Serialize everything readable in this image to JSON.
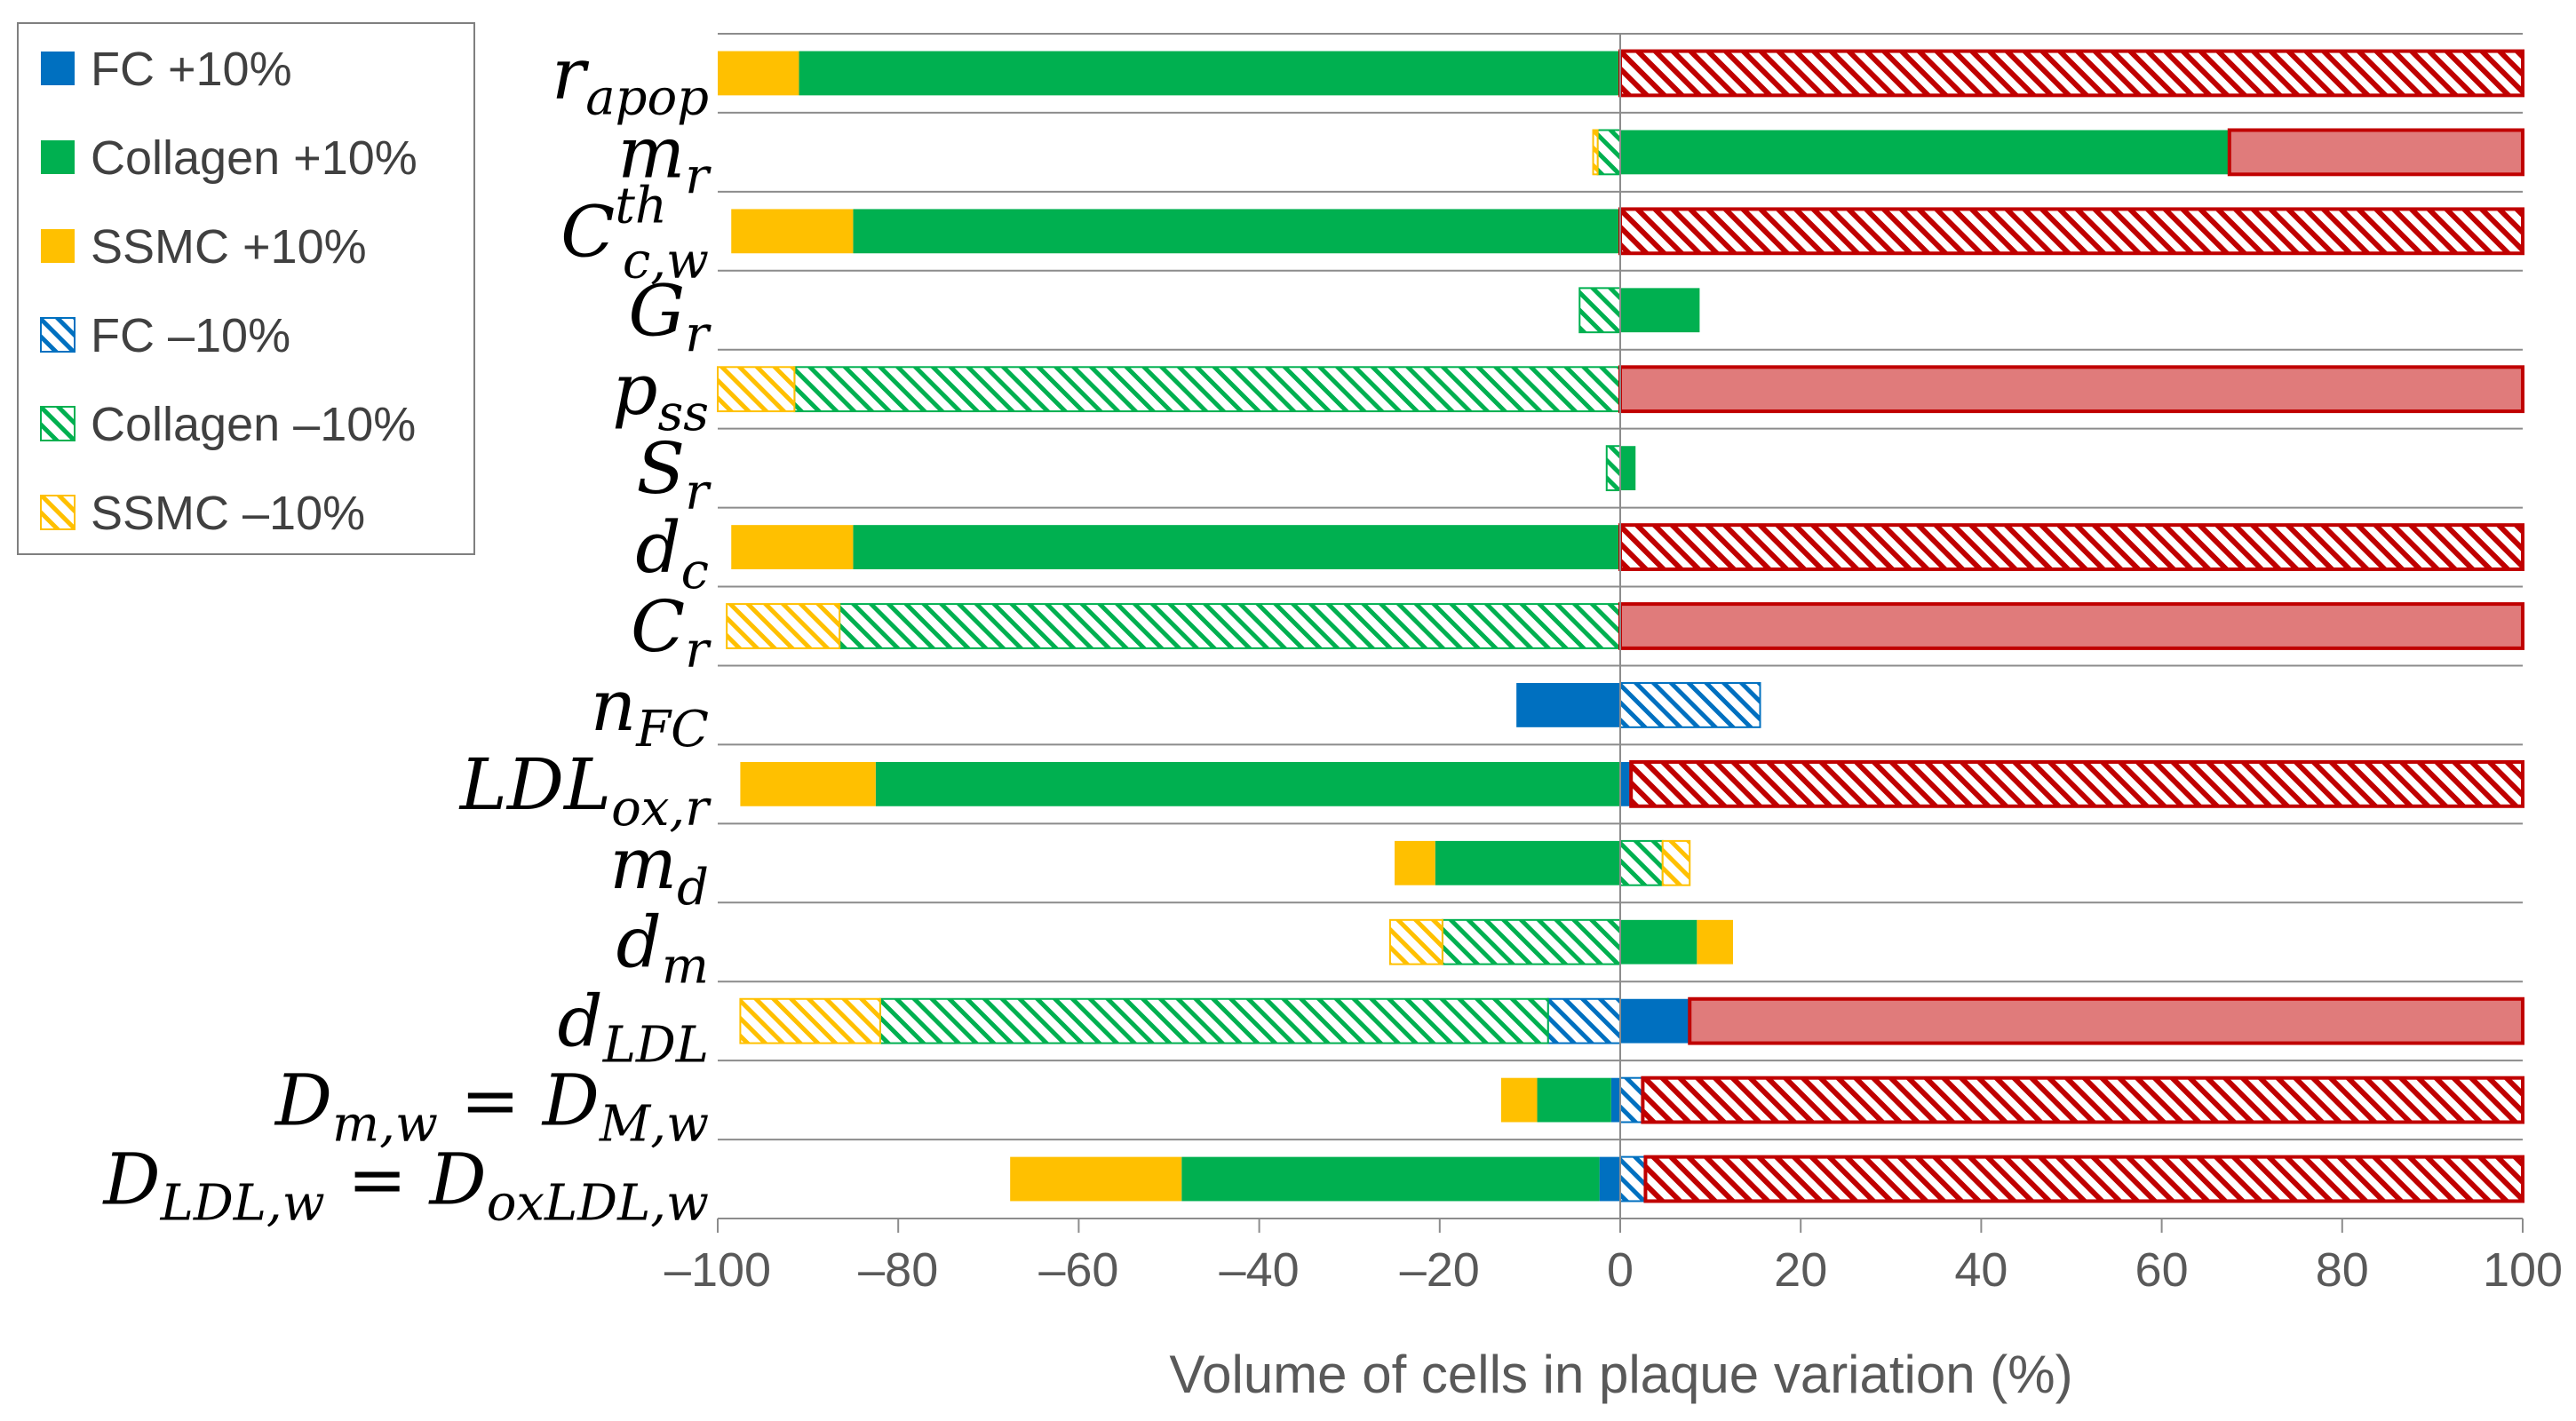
{
  "chart_data": {
    "type": "bar",
    "orientation": "horizontal",
    "stacking": "diverging",
    "xlabel": "Volume of cells in plaque variation (%)",
    "ylabel": "",
    "xlim": [
      -100,
      100
    ],
    "xticks": [
      "-100",
      "-80",
      "-60",
      "-40",
      "-20",
      "0",
      "20",
      "40",
      "60",
      "80",
      "100"
    ],
    "grid": "horizontal category separators",
    "legend_position": "top-left",
    "colors": {
      "fc": "#0070C0",
      "collagen": "#00B050",
      "ssmc": "#FFC000",
      "red_fill": "#E07B7B",
      "red_stroke": "#C00000",
      "grid": "#8C8C8C",
      "axis": "#8C8C8C"
    },
    "legend": [
      {
        "label": "FC  +10%",
        "key": "fc",
        "hatched": false
      },
      {
        "label": "Collagen  +10%",
        "key": "collagen",
        "hatched": false
      },
      {
        "label": "SSMC  +10%",
        "key": "ssmc",
        "hatched": false
      },
      {
        "label": "FC  –10%",
        "key": "fc",
        "hatched": true
      },
      {
        "label": "Collagen  –10%",
        "key": "collagen",
        "hatched": true
      },
      {
        "label": "SSMC  –10%",
        "key": "ssmc",
        "hatched": true
      }
    ],
    "categories": [
      {
        "name": "r_apop",
        "main": "r",
        "sub": "apop",
        "sup": ""
      },
      {
        "name": "m_r",
        "main": "m",
        "sub": "r",
        "sup": ""
      },
      {
        "name": "C_c,w^th",
        "main": "C",
        "sub": "c,w",
        "sup": "th"
      },
      {
        "name": "G_r",
        "main": "G",
        "sub": "r",
        "sup": ""
      },
      {
        "name": "p_ss",
        "main": "p",
        "sub": "ss",
        "sup": ""
      },
      {
        "name": "S_r",
        "main": "S",
        "sub": "r",
        "sup": ""
      },
      {
        "name": "d_c",
        "main": "d",
        "sub": "c",
        "sup": ""
      },
      {
        "name": "C_r",
        "main": "C",
        "sub": "r",
        "sup": ""
      },
      {
        "name": "n_FC",
        "main": "n",
        "sub": "FC",
        "sup": ""
      },
      {
        "name": "LDL_ox,r",
        "main": "LDL",
        "sub": "ox,r",
        "sup": ""
      },
      {
        "name": "m_d",
        "main": "m",
        "sub": "d",
        "sup": ""
      },
      {
        "name": "d_m",
        "main": "d",
        "sub": "m",
        "sup": ""
      },
      {
        "name": "d_LDL",
        "main": "d",
        "sub": "LDL",
        "sup": ""
      },
      {
        "name": "D_m,w = D_M,w",
        "main": "D",
        "sub": "m,w",
        "sup": "",
        "main2": " = D",
        "sub2": "M,w"
      },
      {
        "name": "D_LDL,w = D_oxLDL,w",
        "main": "D",
        "sub": "LDL,w",
        "sup": "",
        "main2": " = D",
        "sub2": "oxLDL,w"
      }
    ],
    "series": [
      {
        "category": "r_apop",
        "negative": [
          {
            "key": "collagen",
            "hatched": false,
            "value": 91
          },
          {
            "key": "ssmc",
            "hatched": false,
            "value": 9
          }
        ],
        "positive": [
          {
            "key": "red",
            "hatched": true,
            "value": 100
          }
        ]
      },
      {
        "category": "m_r",
        "negative": [
          {
            "key": "collagen",
            "hatched": true,
            "value": 2.5
          },
          {
            "key": "ssmc",
            "hatched": true,
            "value": 0.5
          }
        ],
        "positive": [
          {
            "key": "collagen",
            "hatched": false,
            "value": 67.5
          },
          {
            "key": "red",
            "hatched": false,
            "value": 32.5
          }
        ]
      },
      {
        "category": "C_c,w^th",
        "negative": [
          {
            "key": "collagen",
            "hatched": false,
            "value": 85
          },
          {
            "key": "ssmc",
            "hatched": false,
            "value": 13.5
          }
        ],
        "positive": [
          {
            "key": "red",
            "hatched": true,
            "value": 100
          }
        ]
      },
      {
        "category": "G_r",
        "negative": [
          {
            "key": "collagen",
            "hatched": true,
            "value": 4.5
          }
        ],
        "positive": [
          {
            "key": "collagen",
            "hatched": false,
            "value": 8.8
          }
        ]
      },
      {
        "category": "p_ss",
        "negative": [
          {
            "key": "collagen",
            "hatched": true,
            "value": 91.5
          },
          {
            "key": "ssmc",
            "hatched": true,
            "value": 8.5
          }
        ],
        "positive": [
          {
            "key": "red",
            "hatched": false,
            "value": 100
          }
        ]
      },
      {
        "category": "S_r",
        "negative": [
          {
            "key": "collagen",
            "hatched": true,
            "value": 1.5
          }
        ],
        "positive": [
          {
            "key": "collagen",
            "hatched": false,
            "value": 1.7
          }
        ]
      },
      {
        "category": "d_c",
        "negative": [
          {
            "key": "collagen",
            "hatched": false,
            "value": 85
          },
          {
            "key": "ssmc",
            "hatched": false,
            "value": 13.5
          }
        ],
        "positive": [
          {
            "key": "red",
            "hatched": true,
            "value": 100
          }
        ]
      },
      {
        "category": "C_r",
        "negative": [
          {
            "key": "collagen",
            "hatched": true,
            "value": 86.5
          },
          {
            "key": "ssmc",
            "hatched": true,
            "value": 12.5
          }
        ],
        "positive": [
          {
            "key": "red",
            "hatched": false,
            "value": 100
          }
        ]
      },
      {
        "category": "n_FC",
        "negative": [
          {
            "key": "fc",
            "hatched": false,
            "value": 11.5
          }
        ],
        "positive": [
          {
            "key": "fc",
            "hatched": true,
            "value": 15.5
          }
        ]
      },
      {
        "category": "LDL_ox,r",
        "negative": [
          {
            "key": "collagen",
            "hatched": false,
            "value": 82.5
          },
          {
            "key": "ssmc",
            "hatched": false,
            "value": 15
          }
        ],
        "positive": [
          {
            "key": "fc",
            "hatched": false,
            "value": 1.2
          },
          {
            "key": "red",
            "hatched": true,
            "value": 98.8
          }
        ]
      },
      {
        "category": "m_d",
        "negative": [
          {
            "key": "collagen",
            "hatched": false,
            "value": 20.5
          },
          {
            "key": "ssmc",
            "hatched": false,
            "value": 4.5
          }
        ],
        "positive": [
          {
            "key": "collagen",
            "hatched": true,
            "value": 4.7
          },
          {
            "key": "ssmc",
            "hatched": true,
            "value": 3
          }
        ]
      },
      {
        "category": "d_m",
        "negative": [
          {
            "key": "collagen",
            "hatched": true,
            "value": 19.7
          },
          {
            "key": "ssmc",
            "hatched": true,
            "value": 5.8
          }
        ],
        "positive": [
          {
            "key": "collagen",
            "hatched": false,
            "value": 8.5
          },
          {
            "key": "ssmc",
            "hatched": false,
            "value": 4
          }
        ]
      },
      {
        "category": "d_LDL",
        "negative": [
          {
            "key": "fc",
            "hatched": true,
            "value": 8
          },
          {
            "key": "collagen",
            "hatched": true,
            "value": 74
          },
          {
            "key": "ssmc",
            "hatched": true,
            "value": 15.5
          }
        ],
        "positive": [
          {
            "key": "fc",
            "hatched": false,
            "value": 7.7
          },
          {
            "key": "red",
            "hatched": false,
            "value": 92.3
          }
        ]
      },
      {
        "category": "D_m,w = D_M,w",
        "negative": [
          {
            "key": "fc",
            "hatched": false,
            "value": 1
          },
          {
            "key": "collagen",
            "hatched": false,
            "value": 8.2
          },
          {
            "key": "ssmc",
            "hatched": false,
            "value": 4
          }
        ],
        "positive": [
          {
            "key": "fc",
            "hatched": true,
            "value": 2.5
          },
          {
            "key": "red",
            "hatched": true,
            "value": 97.5
          }
        ]
      },
      {
        "category": "D_LDL,w = D_oxLDL,w",
        "negative": [
          {
            "key": "fc",
            "hatched": false,
            "value": 2.3
          },
          {
            "key": "collagen",
            "hatched": false,
            "value": 46.3
          },
          {
            "key": "ssmc",
            "hatched": false,
            "value": 19
          }
        ],
        "positive": [
          {
            "key": "fc",
            "hatched": true,
            "value": 2.8
          },
          {
            "key": "red",
            "hatched": true,
            "value": 97.2
          }
        ]
      }
    ]
  }
}
